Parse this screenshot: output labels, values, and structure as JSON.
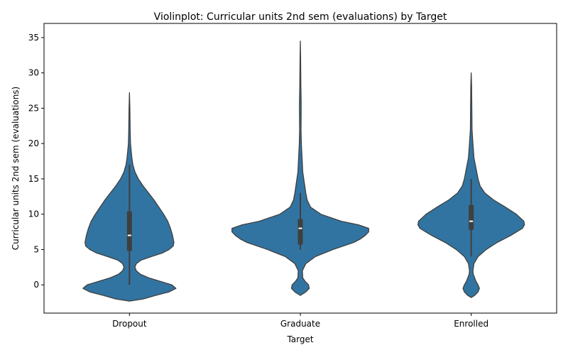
{
  "chart_data": {
    "type": "violin",
    "title": "Violinplot: Curricular units 2nd sem (evaluations) by Target",
    "xlabel": "Target",
    "ylabel": "Curricular units 2nd sem (evaluations)",
    "ylim": [
      -4,
      37
    ],
    "yticks": [
      0,
      5,
      10,
      15,
      20,
      25,
      30,
      35
    ],
    "grid": false,
    "color": "#3274a1",
    "categories": [
      "Dropout",
      "Graduate",
      "Enrolled"
    ],
    "series": [
      {
        "category": "Dropout",
        "min": 0,
        "q1": 4.8,
        "median": 7,
        "q3": 10.4,
        "max": 17,
        "kde_range": [
          -2.3,
          27.2
        ],
        "profile": [
          [
            -2.3,
            0.0
          ],
          [
            -2,
            0.2
          ],
          [
            -1.5,
            0.38
          ],
          [
            -1,
            0.58
          ],
          [
            -0.5,
            0.68
          ],
          [
            0,
            0.62
          ],
          [
            0.5,
            0.45
          ],
          [
            1,
            0.28
          ],
          [
            1.5,
            0.16
          ],
          [
            2,
            0.1
          ],
          [
            2.5,
            0.08
          ],
          [
            3,
            0.1
          ],
          [
            3.5,
            0.17
          ],
          [
            4,
            0.32
          ],
          [
            4.5,
            0.48
          ],
          [
            5,
            0.58
          ],
          [
            5.5,
            0.64
          ],
          [
            6,
            0.65
          ],
          [
            7,
            0.63
          ],
          [
            8,
            0.6
          ],
          [
            9,
            0.56
          ],
          [
            10,
            0.5
          ],
          [
            11,
            0.43
          ],
          [
            12,
            0.36
          ],
          [
            13,
            0.28
          ],
          [
            14,
            0.2
          ],
          [
            15,
            0.13
          ],
          [
            16,
            0.08
          ],
          [
            17,
            0.05
          ],
          [
            18,
            0.035
          ],
          [
            19,
            0.025
          ],
          [
            20,
            0.015
          ],
          [
            22,
            0.01
          ],
          [
            25,
            0.006
          ],
          [
            27.2,
            0.0
          ]
        ]
      },
      {
        "category": "Graduate",
        "min": 5,
        "q1": 5.7,
        "median": 8,
        "q3": 9.3,
        "max": 13,
        "kde_range": [
          -1.5,
          34.5
        ],
        "profile": [
          [
            -1.5,
            0.0
          ],
          [
            -1,
            0.08
          ],
          [
            -0.5,
            0.13
          ],
          [
            0,
            0.12
          ],
          [
            0.5,
            0.07
          ],
          [
            1,
            0.035
          ],
          [
            2,
            0.03
          ],
          [
            3,
            0.08
          ],
          [
            4,
            0.22
          ],
          [
            5,
            0.48
          ],
          [
            6,
            0.78
          ],
          [
            6.5,
            0.88
          ],
          [
            7,
            0.95
          ],
          [
            7.5,
            1.0
          ],
          [
            8,
            1.0
          ],
          [
            8.5,
            0.85
          ],
          [
            9,
            0.6
          ],
          [
            10,
            0.3
          ],
          [
            11,
            0.15
          ],
          [
            12,
            0.1
          ],
          [
            13,
            0.08
          ],
          [
            14,
            0.065
          ],
          [
            15,
            0.05
          ],
          [
            16,
            0.035
          ],
          [
            18,
            0.025
          ],
          [
            20,
            0.015
          ],
          [
            22,
            0.01
          ],
          [
            24,
            0.012
          ],
          [
            26,
            0.012
          ],
          [
            28,
            0.008
          ],
          [
            30,
            0.006
          ],
          [
            32,
            0.004
          ],
          [
            34.5,
            0.0
          ]
        ]
      },
      {
        "category": "Enrolled",
        "min": 4,
        "q1": 7.8,
        "median": 9,
        "q3": 11.3,
        "max": 15,
        "kde_range": [
          -1.8,
          30
        ],
        "profile": [
          [
            -1.8,
            0.0
          ],
          [
            -1.5,
            0.05
          ],
          [
            -1,
            0.1
          ],
          [
            -0.5,
            0.12
          ],
          [
            0,
            0.1
          ],
          [
            0.5,
            0.07
          ],
          [
            1,
            0.05
          ],
          [
            1.5,
            0.03
          ],
          [
            2,
            0.025
          ],
          [
            3,
            0.04
          ],
          [
            4,
            0.1
          ],
          [
            5,
            0.22
          ],
          [
            6,
            0.38
          ],
          [
            7,
            0.58
          ],
          [
            8,
            0.75
          ],
          [
            8.5,
            0.78
          ],
          [
            9,
            0.77
          ],
          [
            10,
            0.66
          ],
          [
            11,
            0.5
          ],
          [
            12,
            0.33
          ],
          [
            13,
            0.2
          ],
          [
            14,
            0.13
          ],
          [
            15,
            0.1
          ],
          [
            16,
            0.08
          ],
          [
            17,
            0.06
          ],
          [
            18,
            0.04
          ],
          [
            20,
            0.025
          ],
          [
            22,
            0.012
          ],
          [
            25,
            0.009
          ],
          [
            28,
            0.006
          ],
          [
            30,
            0.0
          ]
        ]
      }
    ]
  }
}
